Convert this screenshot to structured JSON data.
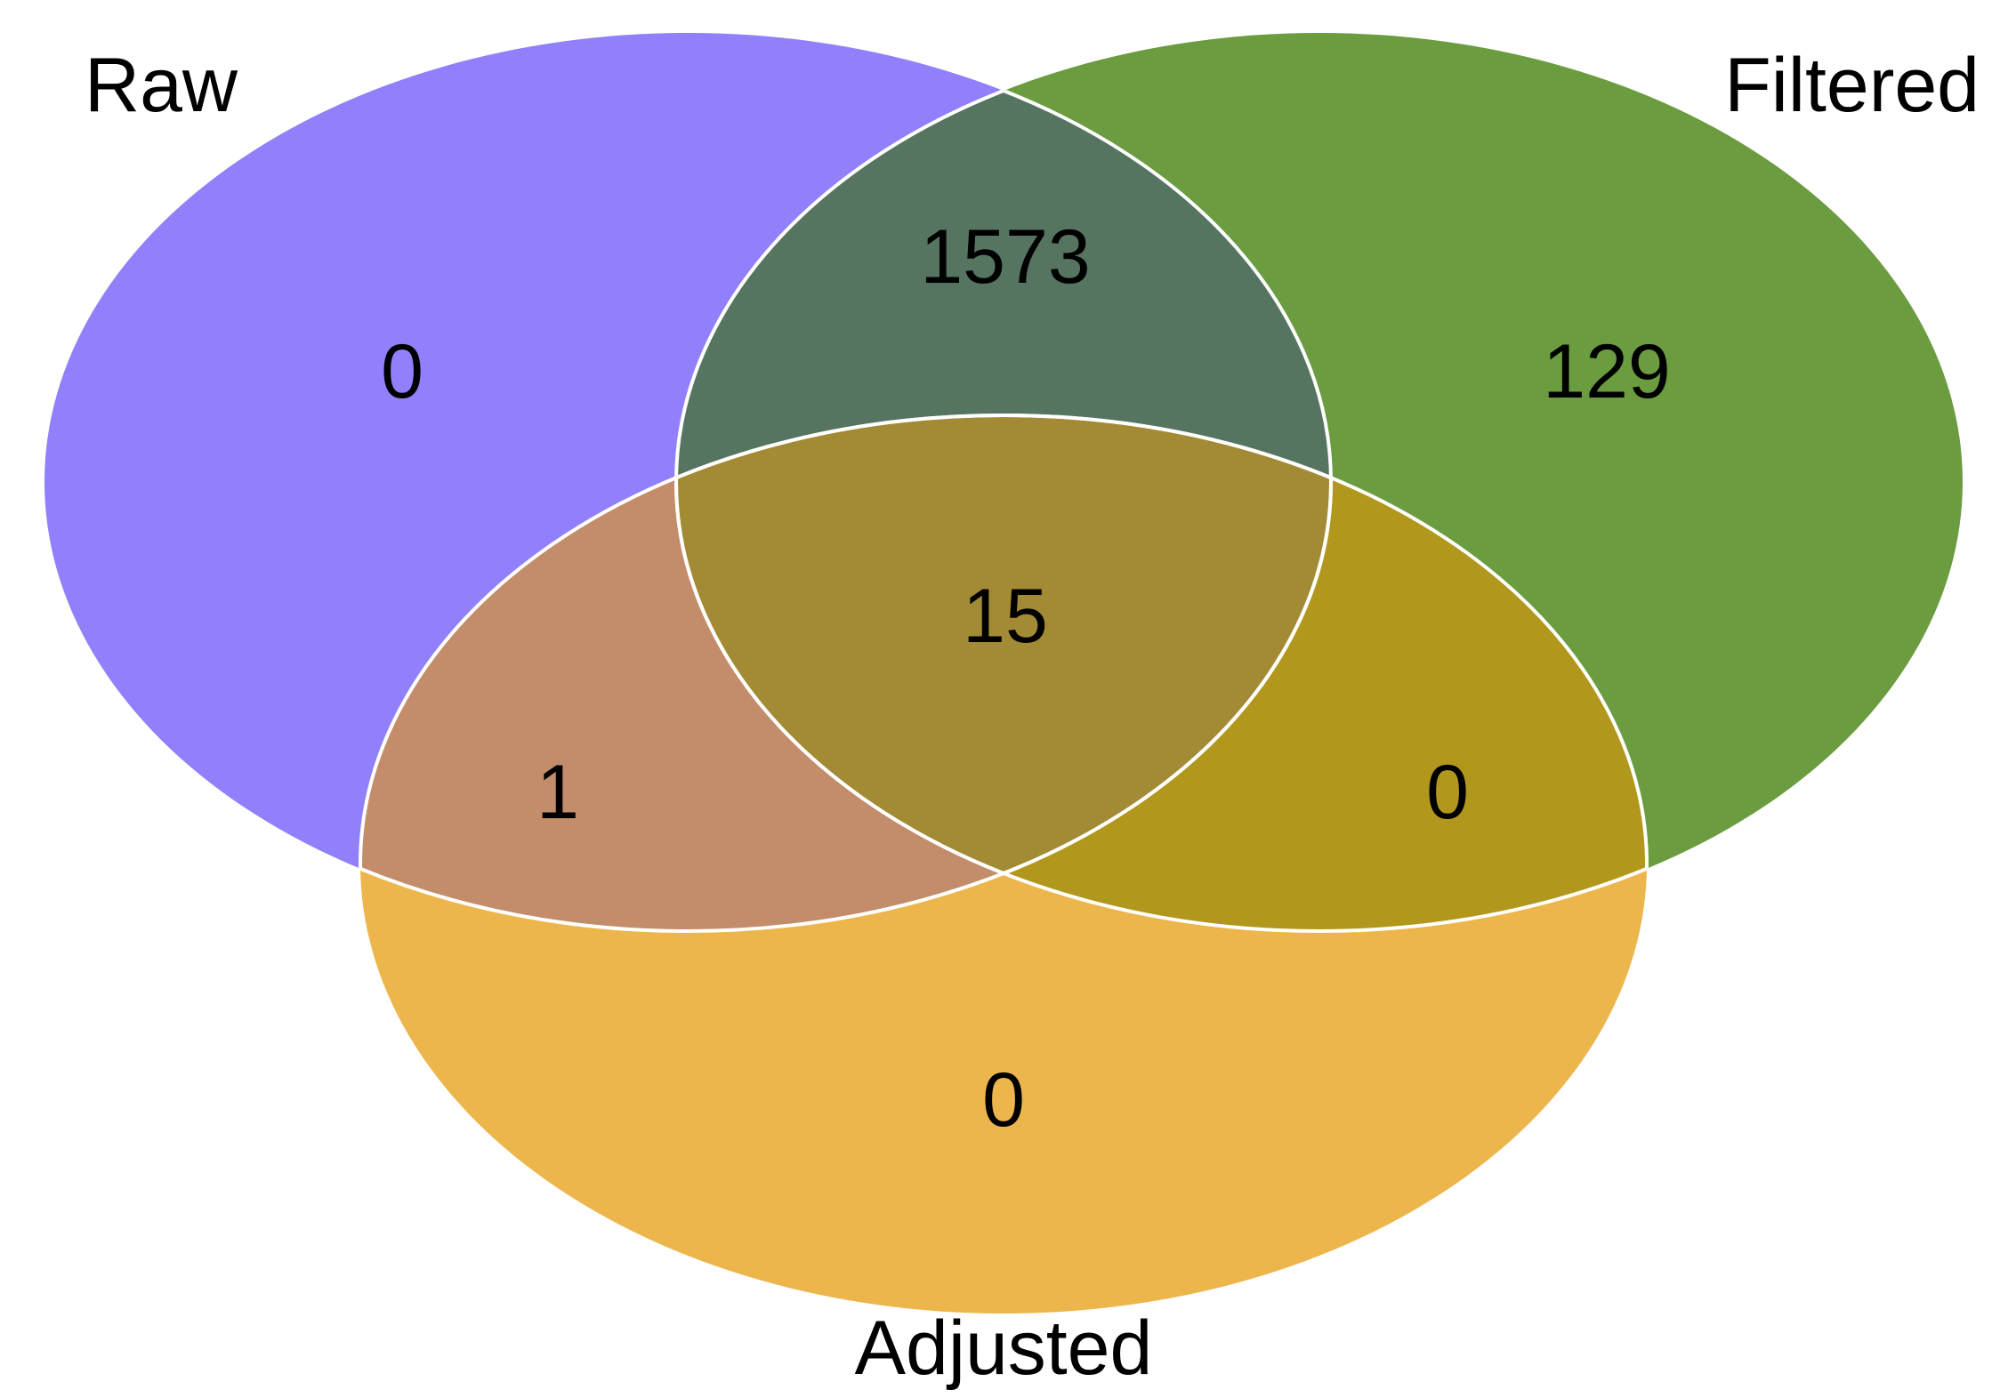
{
  "diagram": {
    "type": "venn-3",
    "sets": [
      {
        "id": "raw",
        "label": "Raw",
        "color": "#9080FB"
      },
      {
        "id": "filtered",
        "label": "Filtered",
        "color": "#6B9C40"
      },
      {
        "id": "adjusted",
        "label": "Adjusted",
        "color": "#EDB64C"
      }
    ],
    "regions": {
      "raw_only": "0",
      "filtered_only": "129",
      "adjusted_only": "0",
      "raw_filtered": "1573",
      "raw_adjusted": "1",
      "filtered_adjusted": "0",
      "all_three": "15"
    },
    "region_colors": {
      "raw_filtered": "#567561",
      "raw_adjusted": "#C38C6A",
      "filtered_adjusted": "#B1981D",
      "all_three": "#A38A34"
    },
    "outline_color": "#FFFFFF"
  }
}
